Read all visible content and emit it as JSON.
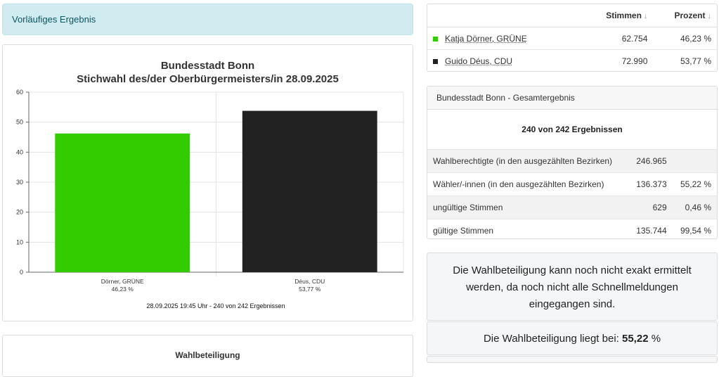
{
  "alert": {
    "text": "Vorläufiges Ergebnis"
  },
  "chart_data": {
    "type": "bar",
    "title": "Bundesstadt Bonn",
    "subtitle": "Stichwahl des/der Oberbürgermeisters/in 28.09.2025",
    "categories": [
      "Dörner, GRÜNE",
      "Déus, CDU"
    ],
    "category_percent_labels": [
      "46,23 %",
      "53,77 %"
    ],
    "values": [
      46.23,
      53.77
    ],
    "colors": [
      "#33cc00",
      "#222222"
    ],
    "ylim": [
      0,
      60
    ],
    "yticks": [
      "0",
      "10",
      "20",
      "30",
      "40",
      "50",
      "60"
    ],
    "grid": true,
    "caption": "28.09.2025 19:45 Uhr - 240 von 242 Ergebnissen"
  },
  "turnout_title": "Wahlbeteiligung",
  "candidates": {
    "header": {
      "votes": "Stimmen",
      "percent": "Prozent",
      "sort_icon": "↓"
    },
    "rows": [
      {
        "name": "Katja Dörner, GRÜNE",
        "color": "#33cc00",
        "votes": "62.754",
        "percent": "46,23 %"
      },
      {
        "name": "Guido Déus, CDU",
        "color": "#222222",
        "votes": "72.990",
        "percent": "53,77 %"
      }
    ]
  },
  "total": {
    "title": "Bundesstadt Bonn - Gesamtergebnis",
    "subtitle": "240 von 242 Ergebnissen",
    "rows": [
      {
        "label": "Wahlberechtigte (in den ausgezählten Bezirken)",
        "value": "246.965",
        "percent": ""
      },
      {
        "label": "Wähler/-innen (in den ausgezählten Bezirken)",
        "value": "136.373",
        "percent": "55,22 %"
      },
      {
        "label": "ungültige Stimmen",
        "value": "629",
        "percent": "0,46 %"
      },
      {
        "label": "gültige Stimmen",
        "value": "135.744",
        "percent": "99,54 %"
      }
    ]
  },
  "notice": "Die Wahlbeteiligung kann noch nicht exakt ermittelt werden, da noch nicht alle Schnellmeldungen eingegangen sind.",
  "rate": {
    "prefix": "Die Wahlbeteiligung liegt bei:",
    "value": "55,22",
    "unit": "%"
  }
}
